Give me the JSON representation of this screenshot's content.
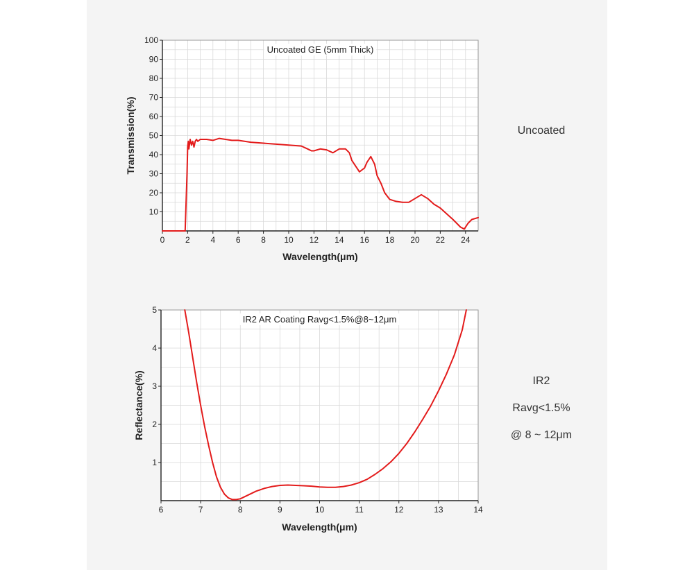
{
  "colors": {
    "line": "#e31b1b",
    "grid": "#d9d9d9",
    "axis": "#222222",
    "plot_bg": "#ffffff"
  },
  "side_labels": {
    "uncoated": "Uncoated",
    "ir2_line1": "IR2",
    "ir2_line2": "Ravg<1.5%",
    "ir2_line3": "@ 8 ~ 12μm"
  },
  "chart_data": [
    {
      "type": "line",
      "title": "Uncoated GE (5mm Thick)",
      "xlabel": "Wavelength(μm)",
      "ylabel": "Transmission(%)",
      "xlim": [
        0,
        25
      ],
      "ylim": [
        0,
        100
      ],
      "xticks": [
        0,
        2,
        4,
        6,
        8,
        10,
        12,
        14,
        16,
        18,
        20,
        22,
        24
      ],
      "yticks": [
        10,
        20,
        30,
        40,
        50,
        60,
        70,
        80,
        90,
        100
      ],
      "grid": true,
      "series": [
        {
          "x": [
            0,
            1.8,
            1.85,
            1.95,
            2.0,
            2.05,
            2.1,
            2.2,
            2.3,
            2.4,
            2.5,
            2.6,
            2.7,
            2.8,
            3.0,
            3.5,
            4.0,
            4.5,
            5.0,
            5.5,
            6.0,
            6.5,
            7.0,
            8.0,
            9.0,
            10.0,
            11.0,
            11.5,
            11.8,
            12.0,
            12.5,
            13.0,
            13.5,
            14.0,
            14.5,
            14.8,
            15.0,
            15.2,
            15.4,
            15.6,
            15.8,
            16.0,
            16.2,
            16.5,
            16.8,
            17.0,
            17.3,
            17.6,
            18.0,
            18.5,
            19.0,
            19.5,
            20.0,
            20.5,
            21.0,
            21.5,
            22.0,
            22.5,
            23.0,
            23.3,
            23.6,
            23.9,
            24.2,
            24.5,
            25.0
          ],
          "y": [
            0,
            0,
            10,
            30,
            44,
            47,
            43,
            48,
            45,
            47,
            44,
            47,
            48,
            47,
            48,
            48,
            47.5,
            48.5,
            48,
            47.5,
            47.5,
            47,
            46.5,
            46,
            45.5,
            45,
            44.5,
            43,
            42,
            42,
            43,
            42.5,
            41,
            43,
            43,
            41,
            37,
            35,
            33,
            31,
            32,
            33,
            36,
            39,
            35,
            29,
            25,
            20,
            16.5,
            15.5,
            15,
            15,
            17,
            19,
            17,
            14,
            12,
            9,
            6,
            4,
            2,
            1,
            4,
            6,
            7
          ]
        }
      ]
    },
    {
      "type": "line",
      "title": "IR2 AR Coating Ravg<1.5%@8~12μm",
      "xlabel": "Wavelength(μm)",
      "ylabel": "Reflectance(%)",
      "xlim": [
        6,
        14
      ],
      "ylim": [
        0,
        5
      ],
      "xticks": [
        6,
        7,
        8,
        9,
        10,
        11,
        12,
        13,
        14
      ],
      "yticks": [
        1,
        2,
        3,
        4,
        5
      ],
      "grid": true,
      "series": [
        {
          "x": [
            6.6,
            6.7,
            6.8,
            6.9,
            7.0,
            7.1,
            7.2,
            7.3,
            7.4,
            7.5,
            7.6,
            7.7,
            7.8,
            7.9,
            8.0,
            8.2,
            8.4,
            8.6,
            8.8,
            9.0,
            9.2,
            9.4,
            9.6,
            9.8,
            10.0,
            10.2,
            10.4,
            10.6,
            10.8,
            11.0,
            11.2,
            11.4,
            11.6,
            11.8,
            12.0,
            12.2,
            12.4,
            12.6,
            12.8,
            13.0,
            13.2,
            13.4,
            13.6,
            13.7
          ],
          "y": [
            5.0,
            4.4,
            3.75,
            3.1,
            2.5,
            1.95,
            1.45,
            1.0,
            0.62,
            0.35,
            0.17,
            0.07,
            0.03,
            0.03,
            0.05,
            0.15,
            0.25,
            0.32,
            0.37,
            0.4,
            0.41,
            0.4,
            0.39,
            0.38,
            0.36,
            0.35,
            0.35,
            0.37,
            0.41,
            0.47,
            0.56,
            0.69,
            0.84,
            1.02,
            1.24,
            1.5,
            1.8,
            2.13,
            2.48,
            2.88,
            3.32,
            3.82,
            4.48,
            5.0
          ]
        }
      ]
    }
  ]
}
